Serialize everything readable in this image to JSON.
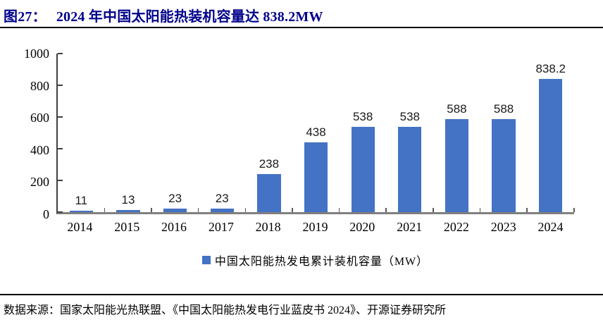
{
  "title": {
    "figure_label": "图27：",
    "text": "2024 年中国太阳能热装机容量达 838.2MW"
  },
  "chart_data": {
    "type": "bar",
    "categories": [
      "2014",
      "2015",
      "2016",
      "2017",
      "2018",
      "2019",
      "2020",
      "2021",
      "2022",
      "2023",
      "2024"
    ],
    "values": [
      11,
      13,
      23,
      23,
      238,
      438,
      538,
      538,
      588,
      588,
      838.2
    ],
    "value_labels": [
      "11",
      "13",
      "23",
      "23",
      "238",
      "438",
      "538",
      "538",
      "588",
      "588",
      "838.2"
    ],
    "series_name": "中国太阳能热发电累计装机容量（MW）",
    "title": "2024 年中国太阳能热装机容量达 838.2MW",
    "xlabel": "",
    "ylabel": "",
    "ylim": [
      0,
      1000
    ],
    "yticks": [
      0,
      200,
      400,
      600,
      800,
      1000
    ],
    "grid": false,
    "legend_position": "bottom",
    "bar_color": "#4472C4"
  },
  "footer": {
    "source_text": "数据来源：国家太阳能光热联盟、《中国太阳能热发电行业蓝皮书 2024》、开源证券研究所"
  },
  "colors": {
    "title_text": "#00008B",
    "bar": "#4472C4",
    "y_axis": "#3f3f3f",
    "x_axis": "#7f7f7f",
    "label_text": "#1a1a1a"
  }
}
